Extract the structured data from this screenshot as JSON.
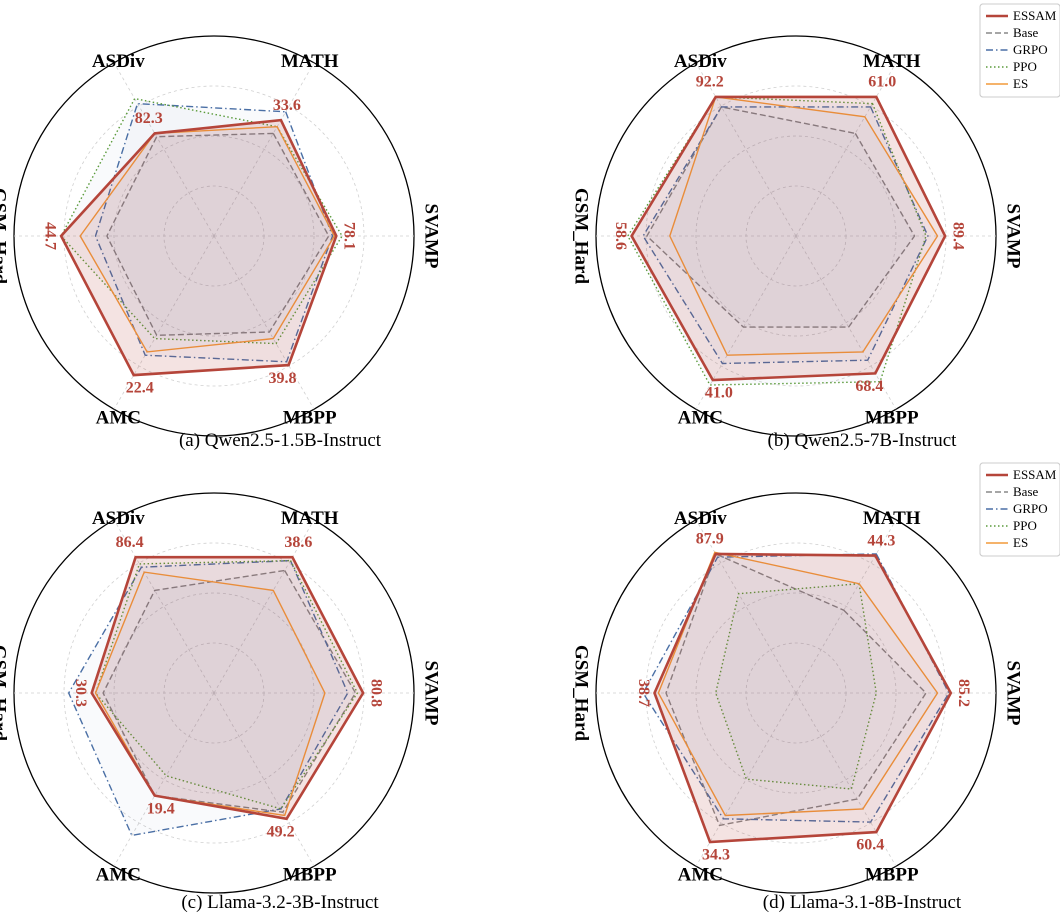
{
  "figure": {
    "series_style": [
      {
        "name": "ESSAM",
        "color": "#b5453a",
        "dash": "solid",
        "width": 2.6,
        "fill": true
      },
      {
        "name": "Base",
        "color": "#888888",
        "dash": "dashed",
        "width": 1.4,
        "fill": false
      },
      {
        "name": "GRPO",
        "color": "#4a6fa5",
        "dash": "dashdot",
        "width": 1.4,
        "fill": false
      },
      {
        "name": "PPO",
        "color": "#5a9a3a",
        "dash": "dotted",
        "width": 1.4,
        "fill": false
      },
      {
        "name": "ES",
        "color": "#f29a3a",
        "dash": "solid",
        "width": 1.4,
        "fill": false
      }
    ]
  },
  "chart_data": [
    {
      "type": "radar",
      "caption": "(a) Qwen2.5-1.5B-Instruct",
      "categories": [
        "MATH",
        "SVAMP",
        "MBPP",
        "AMC",
        "GSM_Hard",
        "ASDiv"
      ],
      "value_labels": [
        "33.6",
        "78.1",
        "39.8",
        "22.4",
        "44.7",
        "82.3"
      ],
      "legend": [
        "ESSAM",
        "Base",
        "GRPO",
        "PPO",
        "ES"
      ],
      "series": [
        {
          "name": "ESSAM",
          "values": [
            0.7,
            0.64,
            0.78,
            0.84,
            0.8,
            0.62
          ]
        },
        {
          "name": "Base",
          "values": [
            0.62,
            0.6,
            0.58,
            0.6,
            0.56,
            0.6
          ]
        },
        {
          "name": "GRPO",
          "values": [
            0.75,
            0.62,
            0.76,
            0.72,
            0.62,
            0.8
          ]
        },
        {
          "name": "PPO",
          "values": [
            0.66,
            0.67,
            0.65,
            0.62,
            0.8,
            0.83
          ]
        },
        {
          "name": "ES",
          "values": [
            0.66,
            0.63,
            0.62,
            0.7,
            0.7,
            0.62
          ]
        }
      ]
    },
    {
      "type": "radar",
      "caption": "(b) Qwen2.5-7B-Instruct",
      "categories": [
        "MATH",
        "SVAMP",
        "MBPP",
        "AMC",
        "GSM_Hard",
        "ASDiv"
      ],
      "value_labels": [
        "61.0",
        "89.4",
        "68.4",
        "41.0",
        "58.6",
        "92.2"
      ],
      "legend": [
        "ESSAM",
        "Base",
        "GRPO",
        "PPO",
        "ES"
      ],
      "series": [
        {
          "name": "ESSAM",
          "values": [
            0.84,
            0.78,
            0.83,
            0.87,
            0.86,
            0.84
          ]
        },
        {
          "name": "Base",
          "values": [
            0.62,
            0.62,
            0.55,
            0.55,
            0.78,
            0.78
          ]
        },
        {
          "name": "GRPO",
          "values": [
            0.78,
            0.69,
            0.75,
            0.77,
            0.8,
            0.78
          ]
        },
        {
          "name": "PPO",
          "values": [
            0.8,
            0.68,
            0.88,
            0.9,
            0.88,
            0.84
          ]
        },
        {
          "name": "ES",
          "values": [
            0.72,
            0.74,
            0.7,
            0.72,
            0.66,
            0.84
          ]
        }
      ]
    },
    {
      "type": "radar",
      "caption": "(c) Llama-3.2-3B-Instruct",
      "categories": [
        "MATH",
        "SVAMP",
        "MBPP",
        "AMC",
        "GSM_Hard",
        "ASDiv"
      ],
      "value_labels": [
        "38.6",
        "80.8",
        "49.2",
        "19.4",
        "30.3",
        "86.4"
      ],
      "legend": [
        "ESSAM",
        "Base",
        "GRPO",
        "PPO",
        "ES"
      ],
      "series": [
        {
          "name": "ESSAM",
          "values": [
            0.82,
            0.78,
            0.76,
            0.62,
            0.64,
            0.82
          ]
        },
        {
          "name": "Base",
          "values": [
            0.74,
            0.74,
            0.72,
            0.62,
            0.58,
            0.62
          ]
        },
        {
          "name": "GRPO",
          "values": [
            0.8,
            0.7,
            0.7,
            0.86,
            0.76,
            0.76
          ]
        },
        {
          "name": "PPO",
          "values": [
            0.8,
            0.75,
            0.7,
            0.5,
            0.62,
            0.78
          ]
        },
        {
          "name": "ES",
          "values": [
            0.62,
            0.58,
            0.74,
            0.62,
            0.62,
            0.73
          ]
        }
      ]
    },
    {
      "type": "radar",
      "caption": "(d) Llama-3.1-8B-Instruct",
      "categories": [
        "MATH",
        "SVAMP",
        "MBPP",
        "AMC",
        "GSM_Hard",
        "ASDiv"
      ],
      "value_labels": [
        "44.3",
        "85.2",
        "60.4",
        "34.3",
        "38.7",
        "87.9"
      ],
      "legend": [
        "ESSAM",
        "Base",
        "GRPO",
        "PPO",
        "ES"
      ],
      "series": [
        {
          "name": "ESSAM",
          "values": [
            0.83,
            0.81,
            0.84,
            0.9,
            0.74,
            0.84
          ]
        },
        {
          "name": "Base",
          "values": [
            0.5,
            0.68,
            0.64,
            0.8,
            0.68,
            0.84
          ]
        },
        {
          "name": "GRPO",
          "values": [
            0.84,
            0.8,
            0.78,
            0.76,
            0.8,
            0.82
          ]
        },
        {
          "name": "PPO",
          "values": [
            0.66,
            0.42,
            0.58,
            0.52,
            0.42,
            0.6
          ]
        },
        {
          "name": "ES",
          "values": [
            0.66,
            0.74,
            0.7,
            0.74,
            0.72,
            0.85
          ]
        }
      ]
    }
  ]
}
